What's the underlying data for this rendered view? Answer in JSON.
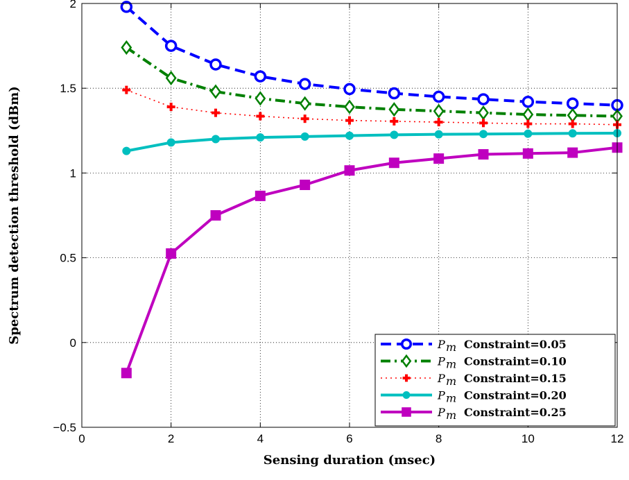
{
  "chart_data": {
    "type": "line",
    "xlabel": "Sensing duration (msec)",
    "ylabel": "Spectrum detection threshold (dBm)",
    "xlim": [
      0,
      12
    ],
    "ylim": [
      -0.5,
      2
    ],
    "xticks": [
      0,
      2,
      4,
      6,
      8,
      10,
      12
    ],
    "yticks": [
      -0.5,
      0,
      0.5,
      1,
      1.5,
      2
    ],
    "xtick_labels": [
      "0",
      "2",
      "4",
      "6",
      "8",
      "10",
      "12"
    ],
    "ytick_labels": [
      "−0.5",
      "0",
      "0.5",
      "1",
      "1.5",
      "2"
    ],
    "grid": true,
    "legend_position": "bottom-right",
    "x": [
      1,
      2,
      3,
      4,
      5,
      6,
      7,
      8,
      9,
      10,
      11,
      12
    ],
    "series": [
      {
        "name": "Constraint=0.05",
        "symbol": "P",
        "subscript": "m",
        "color": "#0000ff",
        "dash": "dash",
        "marker": "circle",
        "values": [
          1.98,
          1.75,
          1.64,
          1.57,
          1.525,
          1.495,
          1.47,
          1.45,
          1.435,
          1.42,
          1.41,
          1.4
        ]
      },
      {
        "name": "Constraint=0.10",
        "symbol": "P",
        "subscript": "m",
        "color": "#008000",
        "dash": "dashdot",
        "marker": "diamond",
        "values": [
          1.74,
          1.56,
          1.48,
          1.44,
          1.41,
          1.39,
          1.375,
          1.365,
          1.355,
          1.345,
          1.34,
          1.335
        ]
      },
      {
        "name": "Constraint=0.15",
        "symbol": "P",
        "subscript": "m",
        "color": "#ff0000",
        "dash": "dot",
        "marker": "plus",
        "values": [
          1.49,
          1.39,
          1.355,
          1.335,
          1.32,
          1.31,
          1.305,
          1.3,
          1.295,
          1.29,
          1.29,
          1.285
        ]
      },
      {
        "name": "Constraint=0.20",
        "symbol": "P",
        "subscript": "m",
        "color": "#00bfbf",
        "dash": "solid",
        "marker": "dot",
        "values": [
          1.13,
          1.18,
          1.2,
          1.21,
          1.215,
          1.22,
          1.225,
          1.228,
          1.23,
          1.232,
          1.234,
          1.235
        ]
      },
      {
        "name": "Constraint=0.25",
        "symbol": "P",
        "subscript": "m",
        "color": "#bf00bf",
        "dash": "solid",
        "marker": "square",
        "values": [
          -0.18,
          0.525,
          0.75,
          0.865,
          0.93,
          1.015,
          1.06,
          1.085,
          1.11,
          1.115,
          1.12,
          1.15
        ]
      }
    ]
  }
}
